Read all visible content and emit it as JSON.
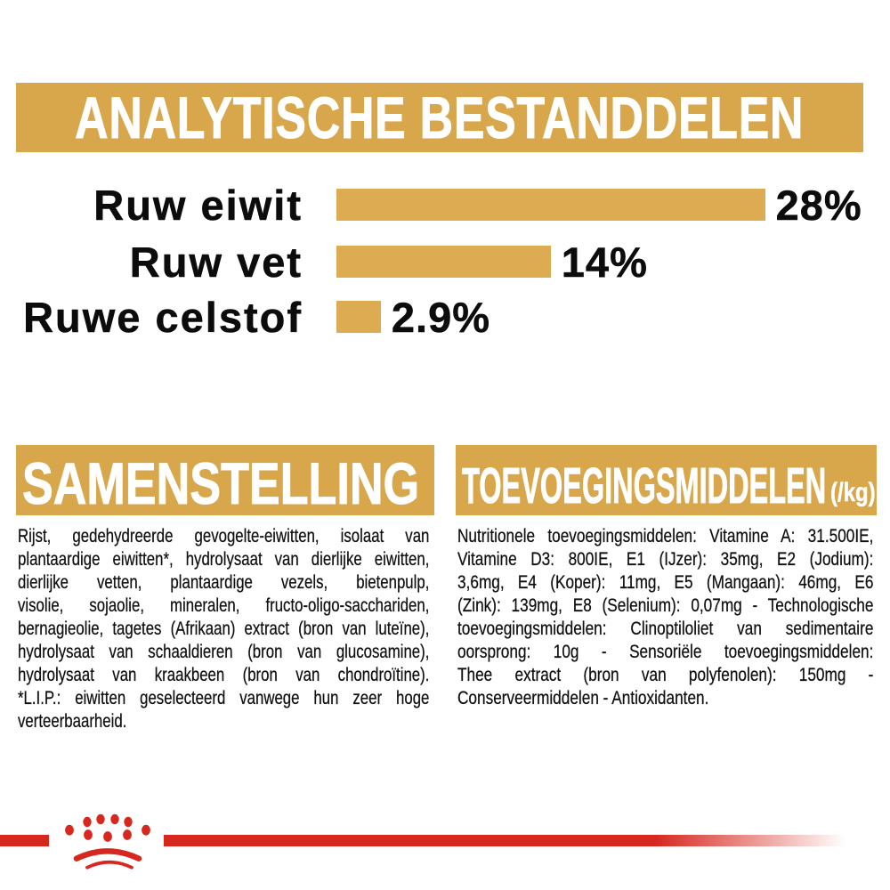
{
  "banner": {
    "title": "ANALYTISCHE BESTANDDELEN"
  },
  "chart_data": {
    "type": "bar",
    "orientation": "horizontal",
    "categories": [
      "Ruw eiwit",
      "Ruw vet",
      "Ruwe celstof"
    ],
    "values": [
      28,
      14,
      2.9
    ],
    "value_labels": [
      "28%",
      "14%",
      "2.9%"
    ],
    "unit": "%",
    "xlim": [
      0,
      30
    ],
    "grid": false,
    "legend": false,
    "bar_color": "#DDAC52"
  },
  "composition": {
    "heading": "SAMENSTELLING",
    "lines": [
      "Rijst, gedehydreerde gevogelte-eiwitten, isolaat van",
      "plantaardige eiwitten*, hydrolysaat van dierlijke eiwitten,",
      "dierlijke vetten, plantaardige vezels, bietenpulp,",
      "visolie, sojaolie, mineralen, fructo-oligo-sacchariden,",
      "bernagieolie, tagetes (Afrikaan) extract (bron van luteïne),",
      "hydrolysaat van schaaldieren (bron van glucosamine),",
      "hydrolysaat van kraakbeen (bron van chondroïtine).",
      "*L.I.P.: eiwitten geselecteerd vanwege hun zeer hoge",
      "verteerbaarheid."
    ]
  },
  "additives": {
    "heading": "TOEVOEGINGSMIDDELEN",
    "unit_label": "(/kg)",
    "lines": [
      "Nutritionele toevoegingsmiddelen: Vitamine A: 31.500IE,",
      "Vitamine D3: 800IE, E1 (IJzer): 35mg, E2 (Jodium):",
      "3,6mg, E4 (Koper): 11mg, E5 (Mangaan): 46mg, E6",
      "(Zink): 139mg, E8 (Selenium): 0,07mg - Technologische",
      "toevoegingsmiddelen: Clinoptiloliet van sedimentaire",
      "oorsprong: 10g - Sensoriële toevoegingsmiddelen:",
      "Thee extract (bron van polyfenolen): 150mg -",
      "Conserveermiddelen - Antioxidanten."
    ]
  },
  "footer": {
    "logo": "royal-canin-crown-paw-logo"
  },
  "colors": {
    "gold": "#D8A64B",
    "bar_gold": "#DDAC52",
    "red": "#D6281E",
    "text": "#111111",
    "heading_text": "#FFFFFF"
  }
}
